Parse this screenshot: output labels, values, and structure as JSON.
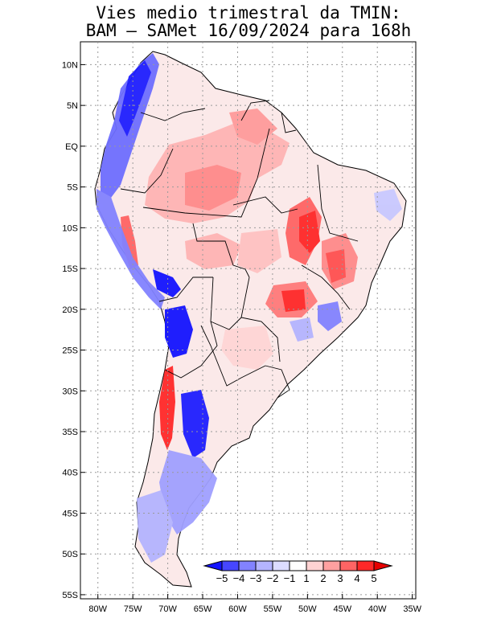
{
  "title": {
    "line1": "Vies medio trimestral da TMIN:",
    "line2": "BAM — SAMet 16/09/2024  para 168h"
  },
  "axes": {
    "lat_labels": [
      "10N",
      "5N",
      "EQ",
      "5S",
      "10S",
      "15S",
      "20S",
      "25S",
      "30S",
      "35S",
      "40S",
      "45S",
      "50S",
      "55S"
    ],
    "lat_values": [
      10,
      5,
      0,
      -5,
      -10,
      -15,
      -20,
      -25,
      -30,
      -35,
      -40,
      -45,
      -50,
      -55
    ],
    "lon_labels": [
      "80W",
      "75W",
      "70W",
      "65W",
      "60W",
      "55W",
      "50W",
      "45W",
      "40W",
      "35W"
    ],
    "lon_values": [
      -80,
      -75,
      -70,
      -65,
      -60,
      -55,
      -50,
      -45,
      -40,
      -35
    ],
    "lon_range": [
      -82.5,
      -34.5
    ],
    "lat_range": [
      -55.5,
      12.8
    ],
    "grid": true
  },
  "colorbar": {
    "labels": [
      "−5",
      "−4",
      "−3",
      "−2",
      "−1",
      "1",
      "2",
      "3",
      "4",
      "5"
    ],
    "colors": [
      "#1414ff",
      "#4646ff",
      "#8282ff",
      "#b4b4ff",
      "#dcdcff",
      "#ffffff",
      "#ffd2d2",
      "#ffa0a0",
      "#ff6464",
      "#ff2828",
      "#e60000"
    ]
  },
  "colors": {
    "land_outline": "#000000",
    "grid": "#999999"
  }
}
